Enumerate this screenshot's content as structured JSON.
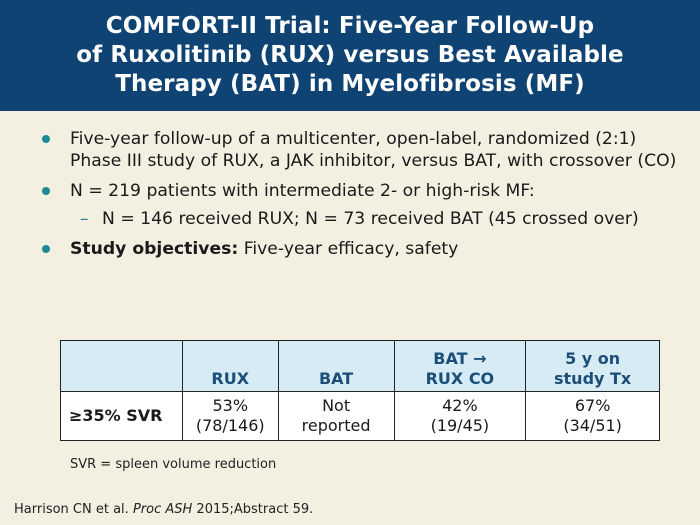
{
  "header": {
    "title_line1": "COMFORT-II Trial: Five-Year Follow-Up",
    "title_line2": "of Ruxolitinib (RUX) versus Best Available",
    "title_line3": "Therapy (BAT) in Myelofibrosis (MF)"
  },
  "bullets": {
    "b1": "Five-year follow-up of a multicenter, open-label, randomized (2:1) Phase III study of RUX, a JAK inhibitor, versus BAT, with crossover (CO)",
    "b2": "N = 219 patients with intermediate 2- or high-risk MF:",
    "b2_sub": "N = 146 received RUX; N = 73 received BAT (45 crossed over)",
    "b3_bold": "Study objectives:",
    "b3_rest": " Five-year efficacy, safety"
  },
  "table": {
    "headers": {
      "c0": "",
      "c1": "RUX",
      "c2": "BAT",
      "c3_line1": "BAT →",
      "c3_line2": "RUX CO",
      "c4_line1": "5 y on",
      "c4_line2": "study Tx"
    },
    "row": {
      "label": "≥35% SVR",
      "rux_pct": "53%",
      "rux_n": "(78/146)",
      "bat_line1": "Not",
      "bat_line2": "reported",
      "co_pct": "42%",
      "co_n": "(19/45)",
      "y5_pct": "67%",
      "y5_n": "(34/51)"
    }
  },
  "footnote": "SVR = spleen volume reduction",
  "citation": {
    "authors": "Harrison CN et al.",
    "journal": "Proc ASH",
    "rest": "2015;Abstract 59."
  },
  "colors": {
    "header_bg": "#0f4373",
    "bullet": "#1b8a94",
    "table_header_bg": "#d7ebf4",
    "table_header_text": "#1b4e78",
    "page_bg": "#f3efe1"
  }
}
